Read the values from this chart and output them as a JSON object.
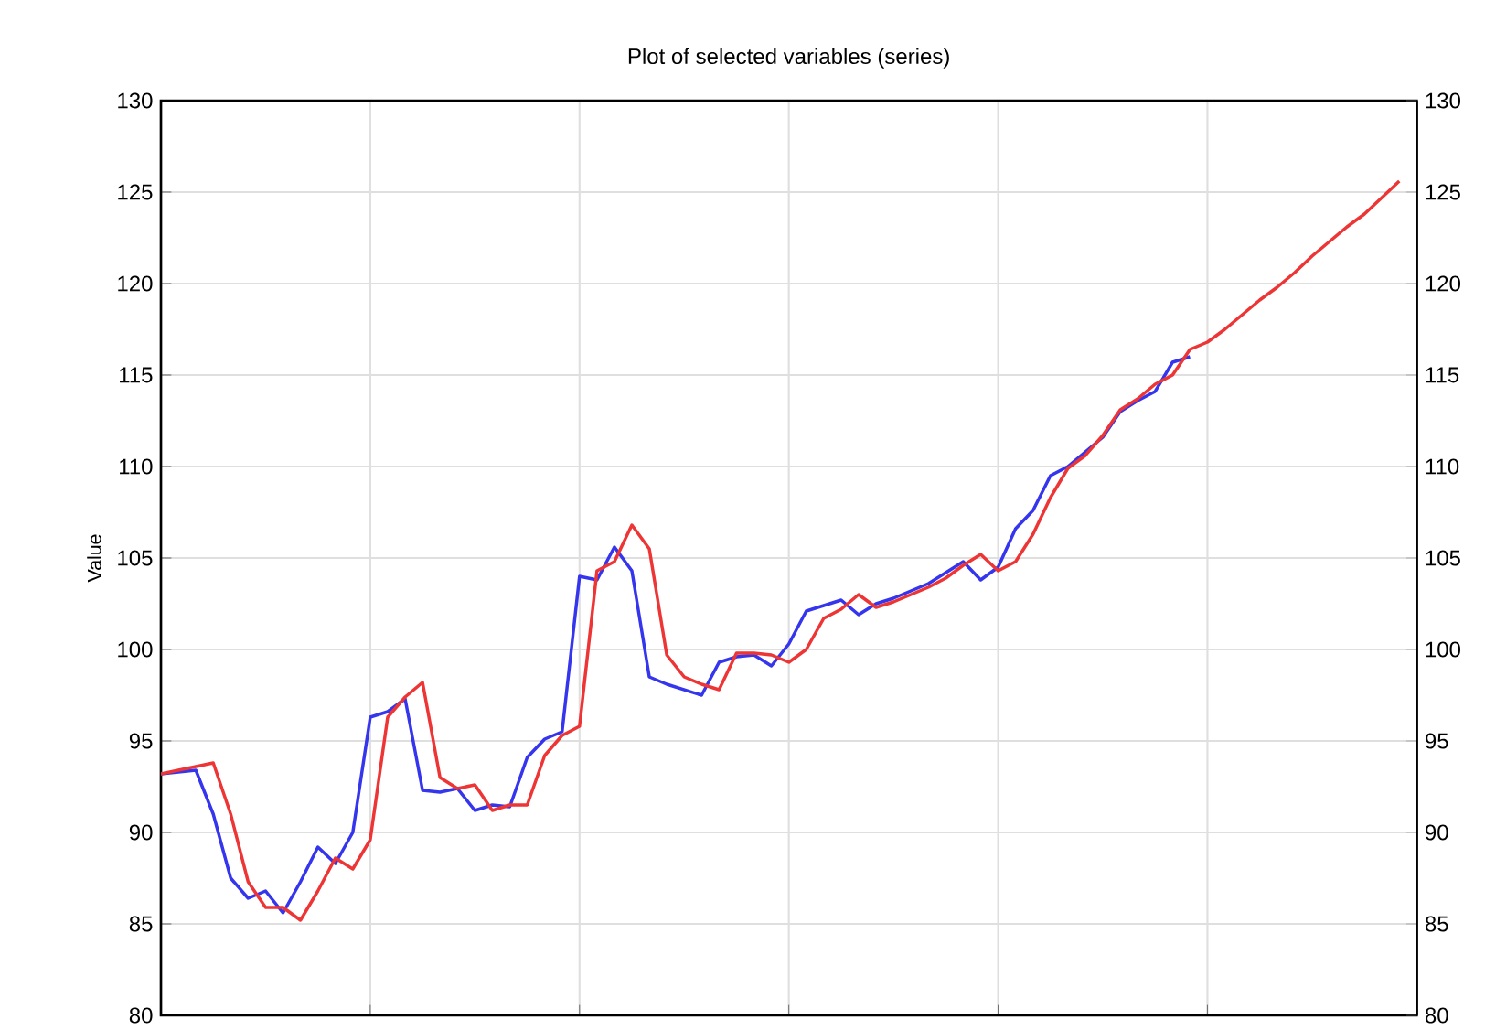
{
  "chart_data": {
    "type": "line",
    "title": "Plot of selected variables (series)",
    "ylabel": "Value",
    "categories": [
      null,
      null,
      null,
      null,
      null,
      null,
      null,
      null,
      null,
      null,
      null,
      null,
      null,
      null,
      null,
      null,
      null,
      null,
      null,
      null,
      null,
      null,
      null,
      null,
      null,
      null,
      null,
      null,
      null,
      null,
      null,
      null,
      null,
      null,
      null,
      null,
      null,
      null,
      null,
      null,
      null,
      null,
      null,
      null,
      null,
      null,
      null,
      null,
      null,
      null,
      null,
      null,
      null,
      null,
      null,
      null,
      null,
      null,
      null,
      null,
      null,
      null,
      null,
      null,
      null,
      null,
      null,
      null,
      null,
      null,
      null,
      null
    ],
    "series": [
      {
        "color": "#3535ee",
        "values": [
          93.2,
          93.3,
          93.4,
          91,
          87.5,
          86.4,
          86.8,
          85.6,
          87.3,
          89.2,
          88.3,
          90,
          96.3,
          96.6,
          97.3,
          92.3,
          92.2,
          92.4,
          91.2,
          91.5,
          91.4,
          94.1,
          95.1,
          95.5,
          104,
          103.8,
          105.6,
          104.3,
          98.5,
          98.1,
          97.8,
          97.5,
          99.3,
          99.6,
          99.7,
          99.1,
          100.3,
          102.1,
          102.4,
          102.7,
          101.9,
          102.5,
          102.8,
          103.2,
          103.6,
          104.2,
          104.8,
          103.8,
          104.5,
          106.6,
          107.6,
          109.5,
          110,
          110.8,
          111.6,
          113,
          113.6,
          114.1,
          115.7,
          116,
          null,
          null,
          null,
          null,
          null,
          null,
          null,
          null,
          null,
          null,
          null,
          null
        ]
      },
      {
        "color": "#ee3535",
        "values": [
          93.2,
          93.4,
          93.6,
          93.8,
          91,
          87.3,
          85.9,
          85.9,
          85.2,
          86.8,
          88.6,
          88,
          89.6,
          96.3,
          97.4,
          98.2,
          93,
          92.4,
          92.6,
          91.2,
          91.5,
          91.5,
          94.2,
          95.3,
          95.8,
          104.3,
          104.8,
          106.8,
          105.5,
          99.7,
          98.5,
          98.1,
          97.8,
          99.8,
          99.8,
          99.7,
          99.3,
          100,
          101.7,
          102.2,
          103,
          102.3,
          102.6,
          103,
          103.4,
          103.9,
          104.6,
          105.2,
          104.3,
          104.8,
          106.3,
          108.3,
          109.9,
          110.6,
          111.7,
          113.1,
          113.7,
          114.5,
          115,
          116.4,
          116.8,
          117.5,
          118.3,
          119.1,
          119.8,
          120.6,
          121.5,
          122.3,
          123.1,
          123.8,
          124.7,
          125.6
        ]
      }
    ],
    "ylim": [
      80,
      130
    ],
    "yticks": [
      80,
      85,
      90,
      95,
      100,
      105,
      110,
      115,
      120,
      125,
      130
    ],
    "y2lim": [
      80,
      130
    ],
    "y2ticks": [
      80,
      85,
      90,
      95,
      100,
      105,
      110,
      115,
      120,
      125,
      130
    ],
    "grid": true,
    "tick_labels": "y",
    "marker": "none",
    "line_style": "solid"
  }
}
